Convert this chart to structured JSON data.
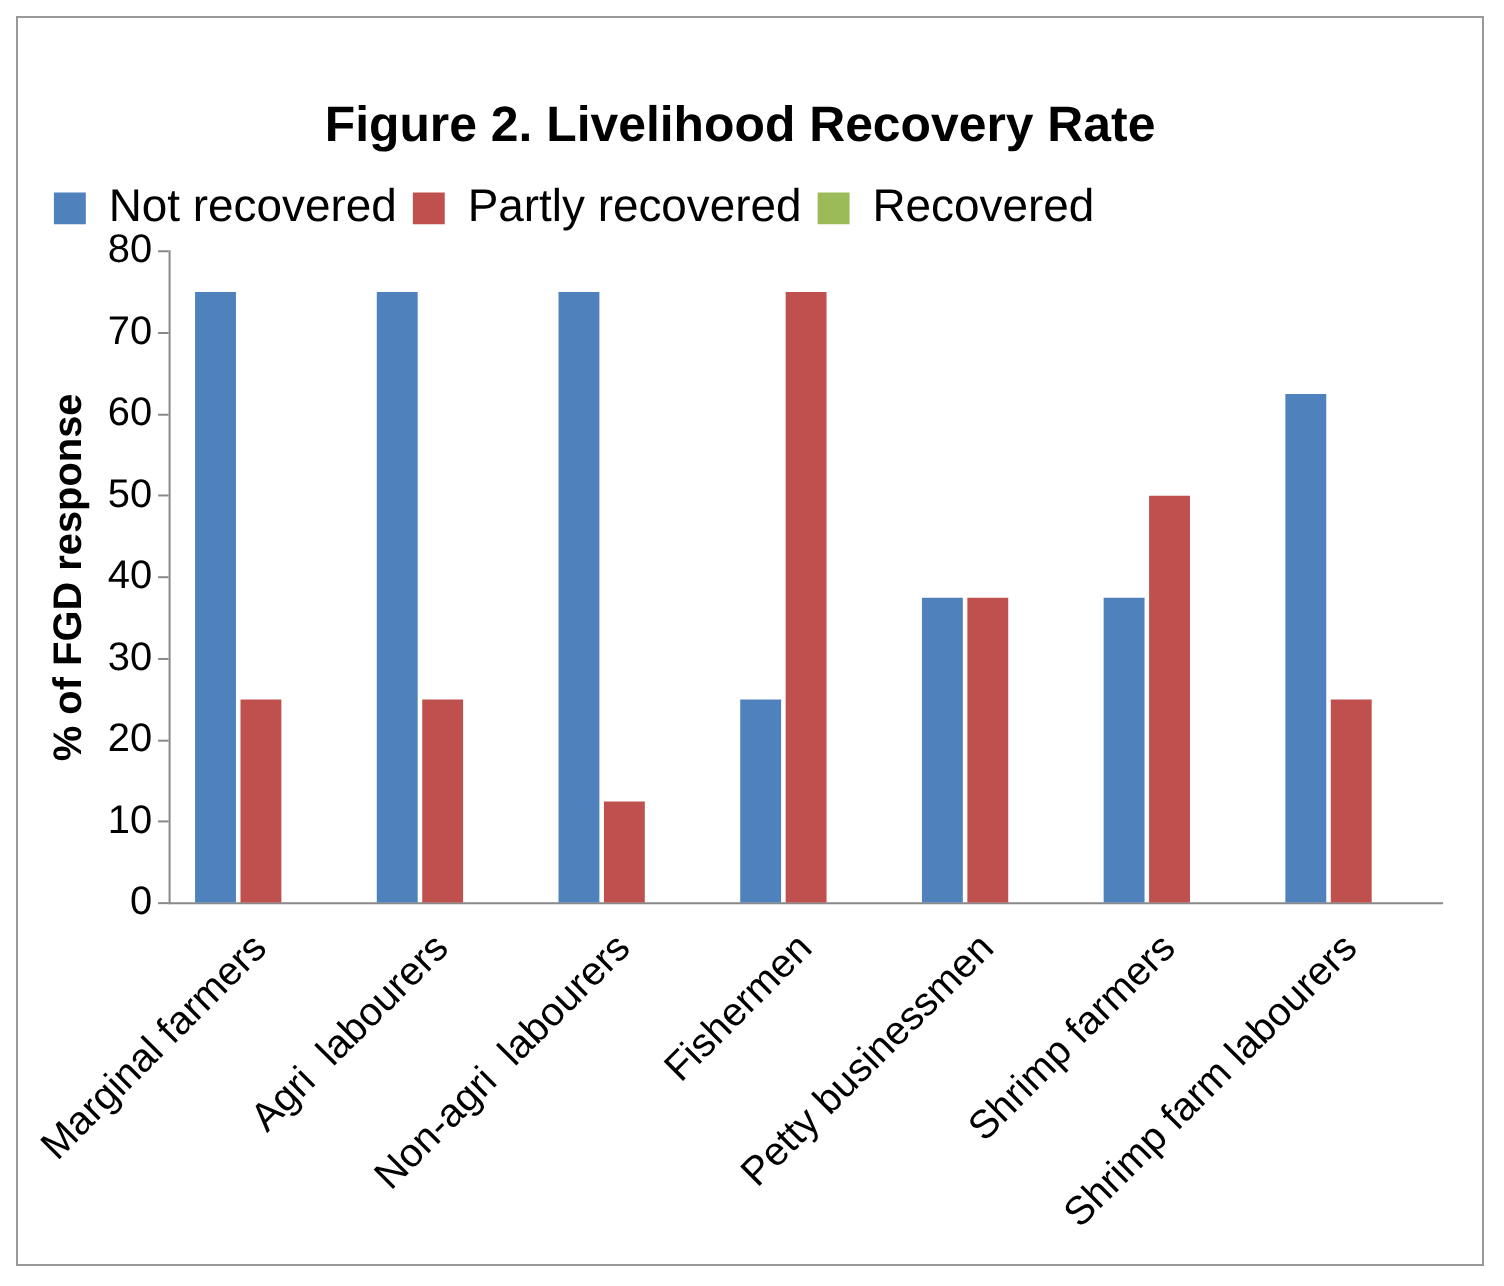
{
  "chart_data": {
    "type": "bar",
    "title": "Figure 2. Livelihood Recovery Rate",
    "ylabel": "% of FGD response",
    "categories": [
      "Marginal farmers",
      "Agri  labourers",
      "Non-agri  labourers",
      "Fishermen",
      "Petty businessmen",
      "Shrimp farmers",
      "Shrimp farm labourers"
    ],
    "series": [
      {
        "name": "Not recovered",
        "color": "#4f81bd",
        "values": [
          75,
          75,
          75,
          25,
          37.5,
          37.5,
          62.5
        ]
      },
      {
        "name": "Partly recovered",
        "color": "#c0504d",
        "values": [
          25,
          25,
          12.5,
          75,
          37.5,
          50,
          25
        ]
      },
      {
        "name": "Recovered",
        "color": "#9bbb59",
        "values": [
          0,
          0,
          0,
          0,
          0,
          0,
          0
        ]
      }
    ],
    "ylim": [
      0,
      80
    ],
    "yticks": [
      0,
      10,
      20,
      30,
      40,
      50,
      60,
      70,
      80
    ],
    "grid": false,
    "legend": "top"
  }
}
